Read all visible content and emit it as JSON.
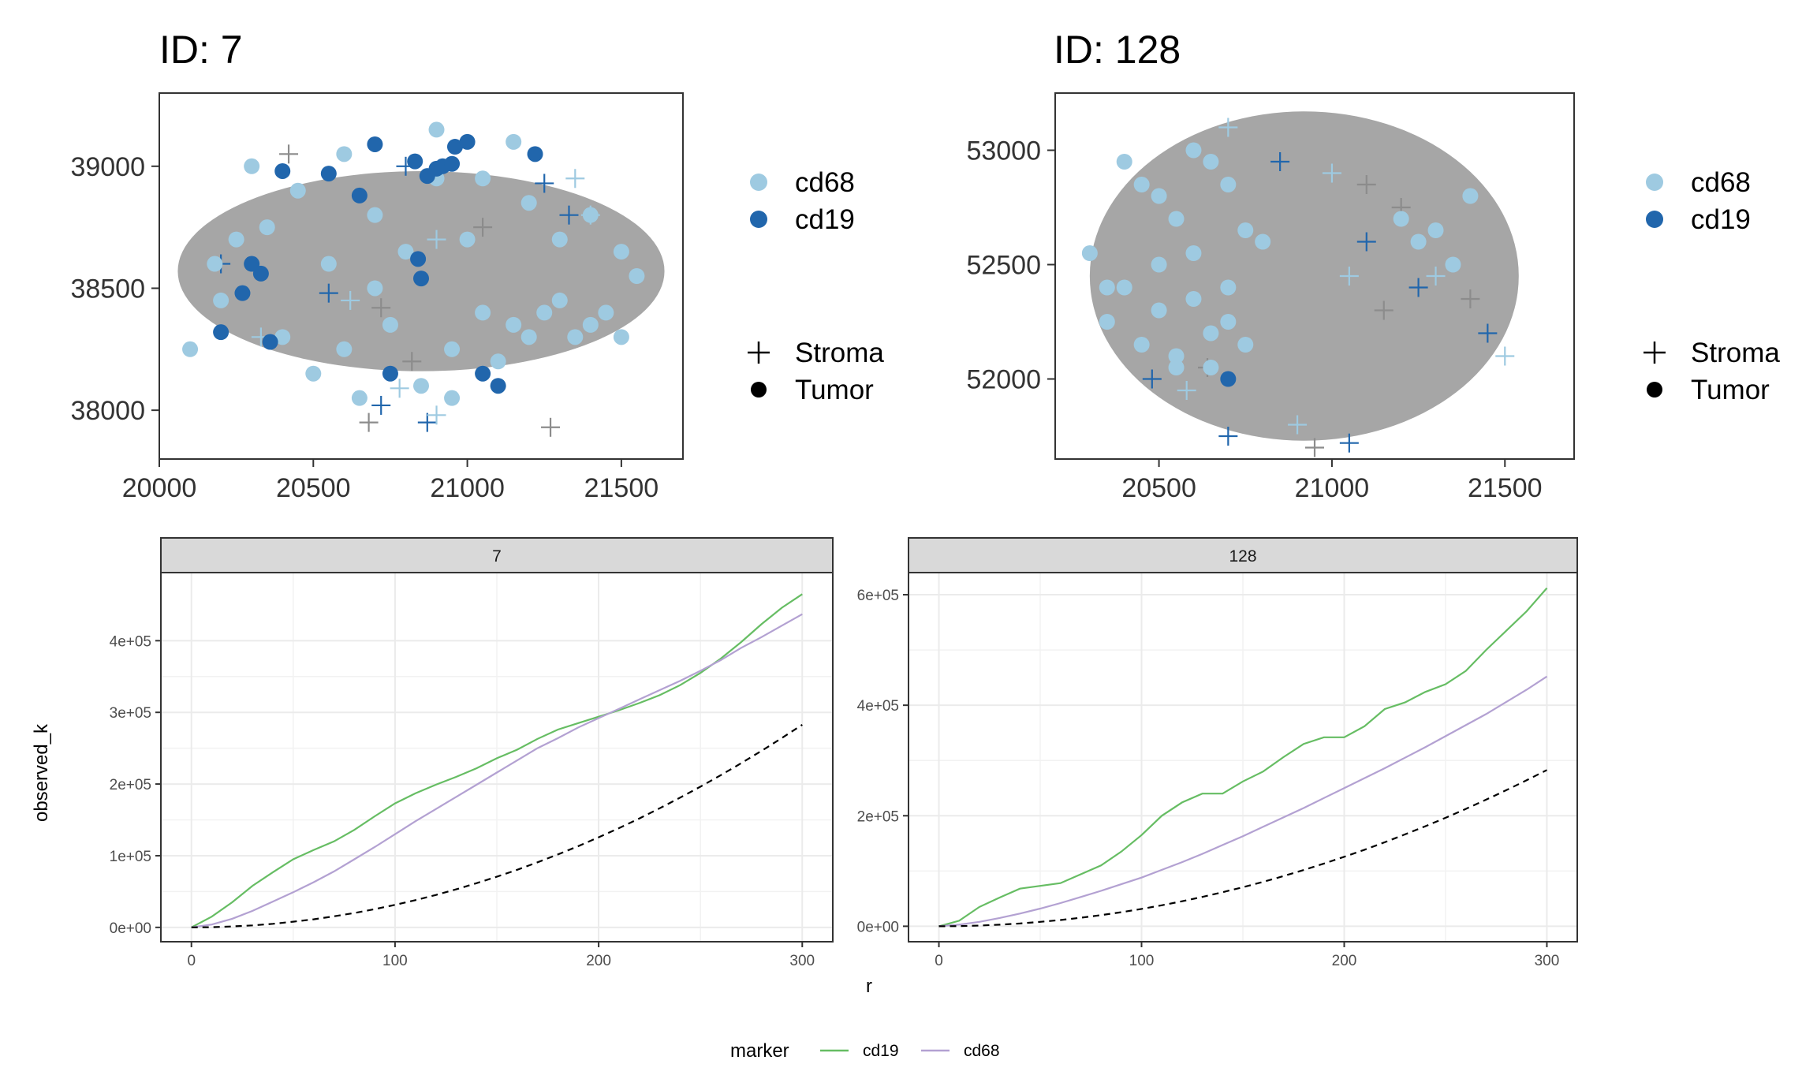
{
  "colors": {
    "cd68": "#9ecae1",
    "cd19": "#2166ac",
    "other": "#a6a6a6",
    "line_cd19": "#66bd63",
    "line_cd68": "#b3a1d2",
    "expected": "#000000",
    "strip_bg": "#d9d9d9",
    "grid": "#ebebeb"
  },
  "chart_data": [
    {
      "type": "scatter",
      "title": "ID: 7",
      "xlim": [
        20000,
        21700
      ],
      "ylim": [
        39300,
        37800
      ],
      "x_ticks": [
        "20000",
        "20500",
        "21000",
        "21500"
      ],
      "y_ticks": [
        "38000",
        "38500",
        "39000"
      ],
      "x_tick_values": [
        20000,
        20500,
        21000,
        21500
      ],
      "y_tick_values": [
        38000,
        38500,
        39000
      ],
      "ellipse": {
        "cx": 20850,
        "cy": 38570,
        "rx": 790,
        "ry": 410
      },
      "cd68_points": [
        [
          20100,
          38250
        ],
        [
          20200,
          38450
        ],
        [
          20250,
          38700
        ],
        [
          20400,
          38300
        ],
        [
          20450,
          38900
        ],
        [
          20500,
          38150
        ],
        [
          20550,
          38600
        ],
        [
          20650,
          38050
        ],
        [
          20700,
          38800
        ],
        [
          20750,
          38350
        ],
        [
          20800,
          38650
        ],
        [
          20850,
          38100
        ],
        [
          20900,
          38950
        ],
        [
          20950,
          38250
        ],
        [
          21000,
          38700
        ],
        [
          21050,
          38400
        ],
        [
          21100,
          38200
        ],
        [
          21150,
          38350
        ],
        [
          21200,
          38300
        ],
        [
          21250,
          38400
        ],
        [
          21300,
          38450
        ],
        [
          21350,
          38300
        ],
        [
          21400,
          38350
        ],
        [
          21450,
          38400
        ],
        [
          21500,
          38300
        ],
        [
          21550,
          38550
        ],
        [
          20300,
          39000
        ],
        [
          20600,
          39050
        ],
        [
          20900,
          39150
        ],
        [
          21150,
          39100
        ],
        [
          20180,
          38600
        ],
        [
          20350,
          38750
        ],
        [
          20600,
          38250
        ],
        [
          20700,
          38500
        ],
        [
          21050,
          38950
        ],
        [
          21300,
          38700
        ],
        [
          21400,
          38800
        ],
        [
          21500,
          38650
        ],
        [
          20950,
          38050
        ],
        [
          21200,
          38850
        ]
      ],
      "cd19_points": [
        [
          20200,
          38320
        ],
        [
          20270,
          38480
        ],
        [
          20300,
          38600
        ],
        [
          20330,
          38560
        ],
        [
          20360,
          38280
        ],
        [
          20400,
          38980
        ],
        [
          20550,
          38970
        ],
        [
          20650,
          38880
        ],
        [
          20700,
          39090
        ],
        [
          20750,
          38150
        ],
        [
          20840,
          38620
        ],
        [
          20850,
          38540
        ],
        [
          20900,
          38990
        ],
        [
          20920,
          39000
        ],
        [
          20960,
          39080
        ],
        [
          21000,
          39100
        ],
        [
          21050,
          38150
        ],
        [
          21100,
          38100
        ],
        [
          21220,
          39050
        ],
        [
          20830,
          39020
        ],
        [
          20870,
          38960
        ],
        [
          20950,
          39010
        ]
      ],
      "stroma_markers": [
        [
          20200,
          38600
        ],
        [
          20330,
          38300
        ],
        [
          20420,
          39050
        ],
        [
          20550,
          38480
        ],
        [
          20620,
          38450
        ],
        [
          20680,
          37950
        ],
        [
          20720,
          38020
        ],
        [
          20780,
          38090
        ],
        [
          20820,
          38200
        ],
        [
          20870,
          37950
        ],
        [
          20900,
          37980
        ],
        [
          21050,
          38750
        ],
        [
          21250,
          38930
        ],
        [
          21350,
          38950
        ],
        [
          21270,
          37930
        ],
        [
          21330,
          38800
        ],
        [
          21400,
          38800
        ],
        [
          20720,
          38420
        ],
        [
          20800,
          39000
        ],
        [
          20900,
          38700
        ]
      ],
      "legend_colour": [
        {
          "label": "cd68",
          "color": "#9ecae1"
        },
        {
          "label": "cd19",
          "color": "#2166ac"
        }
      ],
      "legend_shape": [
        {
          "label": "Stroma",
          "shape": "plus"
        },
        {
          "label": "Tumor",
          "shape": "dot"
        }
      ]
    },
    {
      "type": "scatter",
      "title": "ID: 128",
      "xlim": [
        20200,
        21700
      ],
      "ylim": [
        53250,
        51650
      ],
      "x_ticks": [
        "20500",
        "21000",
        "21500"
      ],
      "y_ticks": [
        "52000",
        "52500",
        "53000"
      ],
      "x_tick_values": [
        20500,
        21000,
        21500
      ],
      "y_tick_values": [
        52000,
        52500,
        53000
      ],
      "ellipse": {
        "cx": 20920,
        "cy": 52450,
        "rx": 620,
        "ry": 720
      },
      "cd68_points": [
        [
          20350,
          52250
        ],
        [
          20400,
          52400
        ],
        [
          20450,
          52150
        ],
        [
          20500,
          52300
        ],
        [
          20550,
          52100
        ],
        [
          20600,
          52350
        ],
        [
          20650,
          52200
        ],
        [
          20700,
          52250
        ],
        [
          20750,
          52150
        ],
        [
          20600,
          52550
        ],
        [
          20550,
          52700
        ],
        [
          20500,
          52800
        ],
        [
          20650,
          52950
        ],
        [
          20600,
          53000
        ],
        [
          20700,
          52850
        ],
        [
          20750,
          52650
        ],
        [
          20800,
          52600
        ],
        [
          20450,
          52850
        ],
        [
          20400,
          52950
        ],
        [
          20550,
          52050
        ],
        [
          20650,
          52050
        ],
        [
          20700,
          52400
        ],
        [
          20500,
          52500
        ],
        [
          20300,
          52550
        ],
        [
          20350,
          52400
        ],
        [
          21200,
          52700
        ],
        [
          21300,
          52650
        ],
        [
          21350,
          52500
        ],
        [
          21250,
          52600
        ],
        [
          21400,
          52800
        ]
      ],
      "cd19_points": [
        [
          20700,
          52000
        ]
      ],
      "stroma_markers": [
        [
          20480,
          52000
        ],
        [
          20580,
          51950
        ],
        [
          20640,
          52050
        ],
        [
          20700,
          51750
        ],
        [
          20900,
          51800
        ],
        [
          20950,
          51700
        ],
        [
          21050,
          51720
        ],
        [
          21000,
          52900
        ],
        [
          21100,
          52850
        ],
        [
          20850,
          52950
        ],
        [
          20700,
          53100
        ],
        [
          21200,
          52750
        ],
        [
          21100,
          52600
        ],
        [
          21050,
          52450
        ],
        [
          21150,
          52300
        ],
        [
          21250,
          52400
        ],
        [
          21300,
          52450
        ],
        [
          21400,
          52350
        ],
        [
          21450,
          52200
        ],
        [
          21500,
          52100
        ]
      ],
      "legend_colour": [
        {
          "label": "cd68",
          "color": "#9ecae1"
        },
        {
          "label": "cd19",
          "color": "#2166ac"
        }
      ],
      "legend_shape": [
        {
          "label": "Stroma",
          "shape": "plus"
        },
        {
          "label": "Tumor",
          "shape": "dot"
        }
      ]
    },
    {
      "type": "line",
      "strip": "7",
      "xlim": [
        -15,
        315
      ],
      "ylim": [
        -20000,
        495000
      ],
      "x_ticks": [
        "0",
        "100",
        "200",
        "300"
      ],
      "x_tick_values": [
        0,
        100,
        200,
        300
      ],
      "y_ticks": [
        "0e+00",
        "1e+05",
        "2e+05",
        "3e+05",
        "4e+05"
      ],
      "y_tick_values": [
        0,
        100000,
        200000,
        300000,
        400000
      ],
      "x": [
        0,
        10,
        20,
        30,
        40,
        50,
        60,
        70,
        80,
        90,
        100,
        110,
        120,
        130,
        140,
        150,
        160,
        170,
        180,
        190,
        200,
        210,
        220,
        230,
        240,
        250,
        260,
        270,
        280,
        290,
        300
      ],
      "series": [
        {
          "name": "cd19",
          "values": [
            0,
            15000,
            35000,
            58000,
            77000,
            95000,
            108000,
            120000,
            136000,
            155000,
            173000,
            187000,
            199000,
            210000,
            222000,
            236000,
            248000,
            263000,
            276000,
            285000,
            294000,
            303000,
            313000,
            324000,
            338000,
            355000,
            375000,
            398000,
            423000,
            446000,
            465000
          ]
        },
        {
          "name": "cd68",
          "values": [
            0,
            4000,
            12000,
            23000,
            36000,
            49000,
            63000,
            78000,
            95000,
            112000,
            130000,
            148000,
            165000,
            182000,
            199000,
            216000,
            233000,
            250000,
            264000,
            279000,
            292000,
            305000,
            318000,
            331000,
            344000,
            358000,
            373000,
            390000,
            405000,
            421000,
            437000
          ]
        },
        {
          "name": "expected",
          "values": [
            0,
            300,
            1300,
            2800,
            5000,
            7900,
            11300,
            15400,
            20100,
            25400,
            31400,
            38000,
            45200,
            53100,
            61600,
            70700,
            80400,
            90800,
            101800,
            113400,
            125700,
            138500,
            152000,
            166200,
            181000,
            196300,
            212400,
            229000,
            246300,
            264200,
            282700
          ]
        }
      ]
    },
    {
      "type": "line",
      "strip": "128",
      "xlim": [
        -15,
        315
      ],
      "ylim": [
        -28000,
        640000
      ],
      "x_ticks": [
        "0",
        "100",
        "200",
        "300"
      ],
      "x_tick_values": [
        0,
        100,
        200,
        300
      ],
      "y_ticks": [
        "0e+00",
        "2e+05",
        "4e+05",
        "6e+05"
      ],
      "y_tick_values": [
        0,
        200000,
        400000,
        600000
      ],
      "x": [
        0,
        10,
        20,
        30,
        40,
        50,
        60,
        70,
        80,
        90,
        100,
        110,
        120,
        130,
        140,
        150,
        160,
        170,
        180,
        190,
        200,
        210,
        220,
        230,
        240,
        250,
        260,
        270,
        280,
        290,
        300
      ],
      "series": [
        {
          "name": "cd19",
          "values": [
            0,
            10000,
            35000,
            52000,
            68000,
            73000,
            78000,
            94000,
            110000,
            135000,
            165000,
            200000,
            224000,
            240000,
            240000,
            262000,
            280000,
            306000,
            330000,
            342000,
            342000,
            362000,
            393000,
            405000,
            424000,
            438000,
            462000,
            500000,
            535000,
            570000,
            612000
          ]
        },
        {
          "name": "cd68",
          "values": [
            0,
            3000,
            8000,
            15000,
            23000,
            32000,
            42000,
            53000,
            64000,
            76000,
            88000,
            102000,
            116000,
            131000,
            147000,
            163000,
            180000,
            197000,
            214000,
            232000,
            250000,
            268000,
            286000,
            305000,
            324000,
            344000,
            364000,
            384000,
            406000,
            428000,
            452000
          ]
        },
        {
          "name": "expected",
          "values": [
            0,
            300,
            1300,
            2800,
            5000,
            7900,
            11300,
            15400,
            20100,
            25400,
            31400,
            38000,
            45200,
            53100,
            61600,
            70700,
            80400,
            90800,
            101800,
            113400,
            125700,
            138500,
            152000,
            166200,
            181000,
            196300,
            212400,
            229000,
            246300,
            264200,
            282700
          ]
        }
      ]
    }
  ],
  "line_axes": {
    "xlabel": "r",
    "ylabel": "observed_k"
  },
  "line_legend": {
    "title": "marker",
    "items": [
      {
        "label": "cd19",
        "color": "#66bd63"
      },
      {
        "label": "cd68",
        "color": "#b3a1d2"
      }
    ]
  }
}
